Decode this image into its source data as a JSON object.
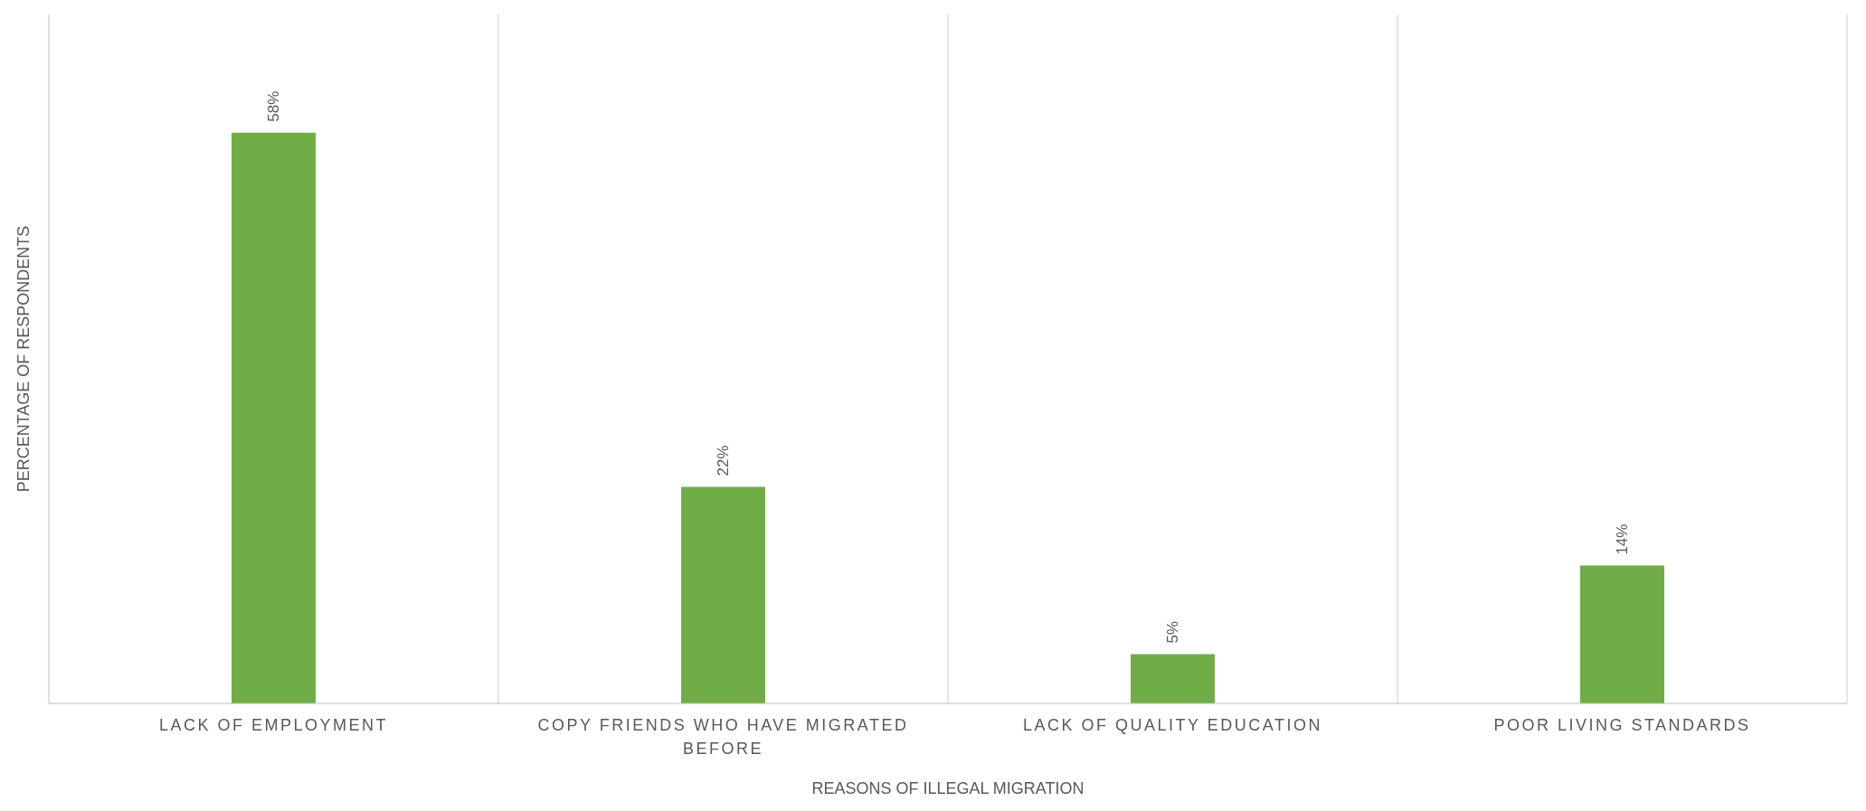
{
  "chart_data": {
    "type": "bar",
    "xlabel": "REASONS OF ILLEGAL MIGRATION",
    "ylabel": "PERCENTAGE OF RESPONDENTS",
    "categories": [
      "LACK OF EMPLOYMENT",
      "COPY FRIENDS WHO HAVE MIGRATED BEFORE",
      "LACK OF QUALITY EDUCATION",
      "POOR LIVING STANDARDS"
    ],
    "values": [
      58,
      22,
      5,
      14
    ],
    "value_labels": [
      "58%",
      "22%",
      "5%",
      "14%"
    ],
    "color": "#70ad47",
    "ylim": [
      0,
      70
    ],
    "tick_labels": "x",
    "grid": "x"
  }
}
